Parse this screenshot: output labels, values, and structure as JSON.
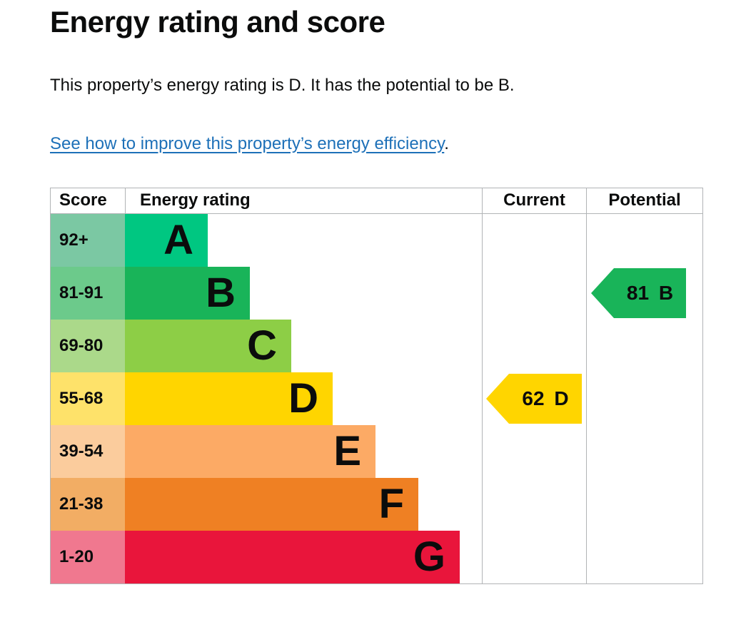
{
  "page": {
    "title": "Energy rating and score",
    "description": "This property’s energy rating is D. It has the potential to be B.",
    "improve_link": "See how to improve this property’s energy efficiency",
    "improve_link_suffix": "."
  },
  "table_headers": {
    "score": "Score",
    "rating": "Energy rating",
    "current": "Current",
    "potential": "Potential"
  },
  "chart_data": {
    "type": "bar",
    "subtype": "epc_energy_rating",
    "title": "Energy rating and score",
    "columns": [
      "Score",
      "Energy rating",
      "Current",
      "Potential"
    ],
    "bands": [
      {
        "letter": "A",
        "score_range": "92+",
        "band_color": "#00c781",
        "score_bg_color": "#7bc8a3",
        "width_pct": 23.2
      },
      {
        "letter": "B",
        "score_range": "81-91",
        "band_color": "#19b459",
        "score_bg_color": "#6cca8b",
        "width_pct": 34.9
      },
      {
        "letter": "C",
        "score_range": "69-80",
        "band_color": "#8dce46",
        "score_bg_color": "#abd98a",
        "width_pct": 46.5
      },
      {
        "letter": "D",
        "score_range": "55-68",
        "band_color": "#ffd500",
        "score_bg_color": "#fee26a",
        "width_pct": 58.1
      },
      {
        "letter": "E",
        "score_range": "39-54",
        "band_color": "#fcaa65",
        "score_bg_color": "#fbcc9d",
        "width_pct": 70.1
      },
      {
        "letter": "F",
        "score_range": "21-38",
        "band_color": "#ef8023",
        "score_bg_color": "#f2ad64",
        "width_pct": 82.2
      },
      {
        "letter": "G",
        "score_range": "1-20",
        "band_color": "#e9153b",
        "score_bg_color": "#f0788f",
        "width_pct": 93.8
      }
    ],
    "current": {
      "score": 62,
      "band": "D",
      "label": "62 D",
      "color": "#ffd500",
      "band_row_index": 3
    },
    "potential": {
      "score": 81,
      "band": "B",
      "label": "81 B",
      "color": "#19b459",
      "band_row_index": 1
    }
  },
  "colors": {
    "text": "#0b0c0c",
    "link": "#1d70b8",
    "table_border": "#b1b4b6"
  }
}
